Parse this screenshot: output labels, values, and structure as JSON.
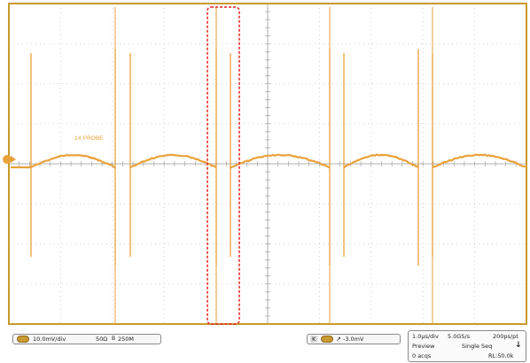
{
  "colors": {
    "background": "#ffffff",
    "border_gold": "#c89a2a",
    "grid_gray": "#b7b7b7",
    "trace": "#e9a23a",
    "highlight_red": "#e02020",
    "channel_badge": "#c99a2e"
  },
  "waveform": {
    "type": "line",
    "channel_marker_icon": "channel-1-level-marker",
    "trace_label": "1X PROBE",
    "description_shape": "repeating half-arch bumps with bipolar spikes",
    "spike_positions_div": [
      0.25,
      1.1,
      2.1,
      3.1,
      4.1,
      5.1,
      6.0,
      6.8,
      7.8,
      8.4
    ],
    "highlighted_window_div": [
      3.1,
      3.6
    ]
  },
  "status": {
    "ch1_scale": "10.0mV/div",
    "ch1_impedance": "50Ω",
    "ch1_bandwidth_label": "250M",
    "trigger_level": "-3.0mV",
    "timebase": "1.0µs/div",
    "sample_rate": "5.0GS/s",
    "resolution": "200ps/pt",
    "mode": "Preview",
    "acquisition": "Single Seq",
    "acq_count": "0 acqs",
    "record_length": "RL:50.0k",
    "down_arrow": "↓"
  }
}
